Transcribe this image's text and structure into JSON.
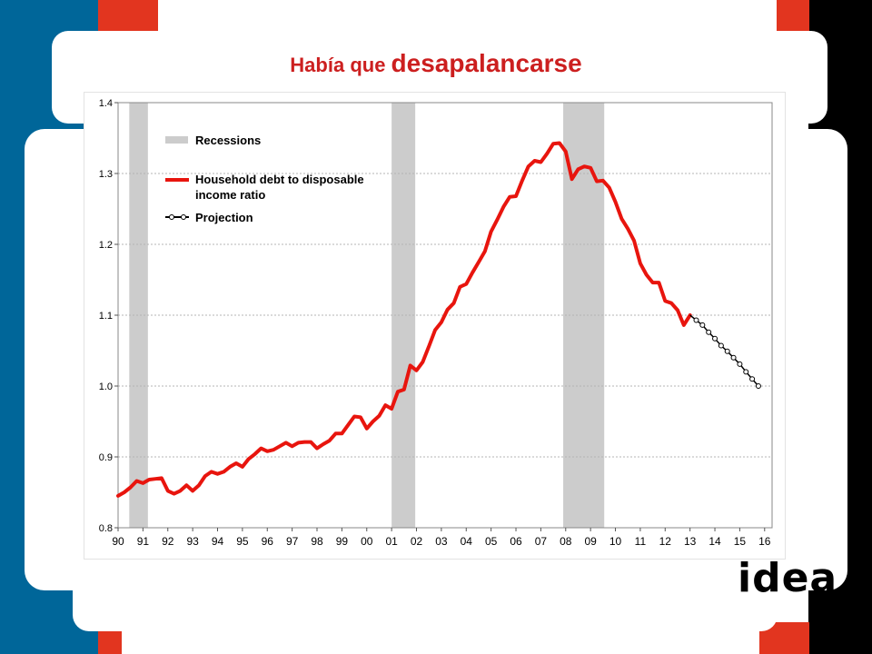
{
  "slide": {
    "title_part1": "Había que ",
    "title_part2": "desapalancarse",
    "logo_text": "idea",
    "colors": {
      "blue": "#006699",
      "red": "#e2351f",
      "black": "#000000",
      "title": "#cc1f1f"
    }
  },
  "chart_data": {
    "type": "line",
    "title": "",
    "xlabel": "",
    "ylabel": "",
    "xlim": [
      1990,
      2016.3
    ],
    "ylim": [
      0.8,
      1.4
    ],
    "yticks": [
      0.8,
      0.9,
      1.0,
      1.1,
      1.2,
      1.3,
      1.4
    ],
    "ytick_labels": [
      "0.8",
      "0.9",
      "1.0",
      "1.1",
      "1.2",
      "1.3",
      "1.4"
    ],
    "xtick_labels": [
      "90",
      "91",
      "92",
      "93",
      "94",
      "95",
      "96",
      "97",
      "98",
      "99",
      "00",
      "01",
      "02",
      "03",
      "04",
      "05",
      "06",
      "07",
      "08",
      "09",
      "10",
      "11",
      "12",
      "13",
      "14",
      "15",
      "16"
    ],
    "grid": true,
    "legend_position": "top-left",
    "legend": {
      "recessions": "Recessions",
      "debt_line1": "Household debt to disposable",
      "debt_line2": "income ratio",
      "projection": "Projection"
    },
    "recessions": [
      [
        1990.45,
        1991.2
      ],
      [
        2001.0,
        2001.95
      ],
      [
        2007.9,
        2009.55
      ]
    ],
    "series": [
      {
        "name": "Household debt to disposable income ratio",
        "color": "#e8150e",
        "x": [
          1990.0,
          1990.25,
          1990.5,
          1990.75,
          1991.0,
          1991.25,
          1991.5,
          1991.75,
          1992.0,
          1992.25,
          1992.5,
          1992.75,
          1993.0,
          1993.25,
          1993.5,
          1993.75,
          1994.0,
          1994.25,
          1994.5,
          1994.75,
          1995.0,
          1995.25,
          1995.5,
          1995.75,
          1996.0,
          1996.25,
          1996.5,
          1996.75,
          1997.0,
          1997.25,
          1997.5,
          1997.75,
          1998.0,
          1998.25,
          1998.5,
          1998.75,
          1999.0,
          1999.25,
          1999.5,
          1999.75,
          2000.0,
          2000.25,
          2000.5,
          2000.75,
          2001.0,
          2001.25,
          2001.5,
          2001.75,
          2002.0,
          2002.25,
          2002.5,
          2002.75,
          2003.0,
          2003.25,
          2003.5,
          2003.75,
          2004.0,
          2004.25,
          2004.5,
          2004.75,
          2005.0,
          2005.25,
          2005.5,
          2005.75,
          2006.0,
          2006.25,
          2006.5,
          2006.75,
          2007.0,
          2007.25,
          2007.5,
          2007.75,
          2008.0,
          2008.25,
          2008.5,
          2008.75,
          2009.0,
          2009.25,
          2009.5,
          2009.75,
          2010.0,
          2010.25,
          2010.5,
          2010.75,
          2011.0,
          2011.25,
          2011.5,
          2011.75,
          2012.0,
          2012.25,
          2012.5,
          2012.75,
          2013.0
        ],
        "y": [
          0.845,
          0.85,
          0.857,
          0.866,
          0.863,
          0.868,
          0.869,
          0.87,
          0.852,
          0.848,
          0.852,
          0.86,
          0.852,
          0.86,
          0.873,
          0.879,
          0.876,
          0.879,
          0.886,
          0.891,
          0.886,
          0.897,
          0.904,
          0.912,
          0.908,
          0.91,
          0.915,
          0.92,
          0.915,
          0.92,
          0.921,
          0.921,
          0.912,
          0.918,
          0.923,
          0.933,
          0.933,
          0.945,
          0.957,
          0.956,
          0.94,
          0.95,
          0.958,
          0.973,
          0.968,
          0.992,
          0.995,
          1.029,
          1.022,
          1.034,
          1.056,
          1.079,
          1.09,
          1.108,
          1.117,
          1.14,
          1.144,
          1.16,
          1.175,
          1.19,
          1.218,
          1.235,
          1.253,
          1.267,
          1.268,
          1.29,
          1.31,
          1.318,
          1.316,
          1.328,
          1.342,
          1.343,
          1.331,
          1.292,
          1.306,
          1.31,
          1.308,
          1.289,
          1.29,
          1.28,
          1.26,
          1.236,
          1.222,
          1.205,
          1.173,
          1.157,
          1.146,
          1.146,
          1.12,
          1.117,
          1.107,
          1.086,
          1.1
        ]
      },
      {
        "name": "Projection",
        "color": "#000000",
        "x": [
          2013.0,
          2013.25,
          2013.5,
          2013.75,
          2014.0,
          2014.25,
          2014.5,
          2014.75,
          2015.0,
          2015.25,
          2015.5,
          2015.75
        ],
        "y": [
          1.1,
          1.093,
          1.086,
          1.076,
          1.067,
          1.057,
          1.049,
          1.04,
          1.031,
          1.02,
          1.01,
          1.0
        ]
      }
    ]
  }
}
